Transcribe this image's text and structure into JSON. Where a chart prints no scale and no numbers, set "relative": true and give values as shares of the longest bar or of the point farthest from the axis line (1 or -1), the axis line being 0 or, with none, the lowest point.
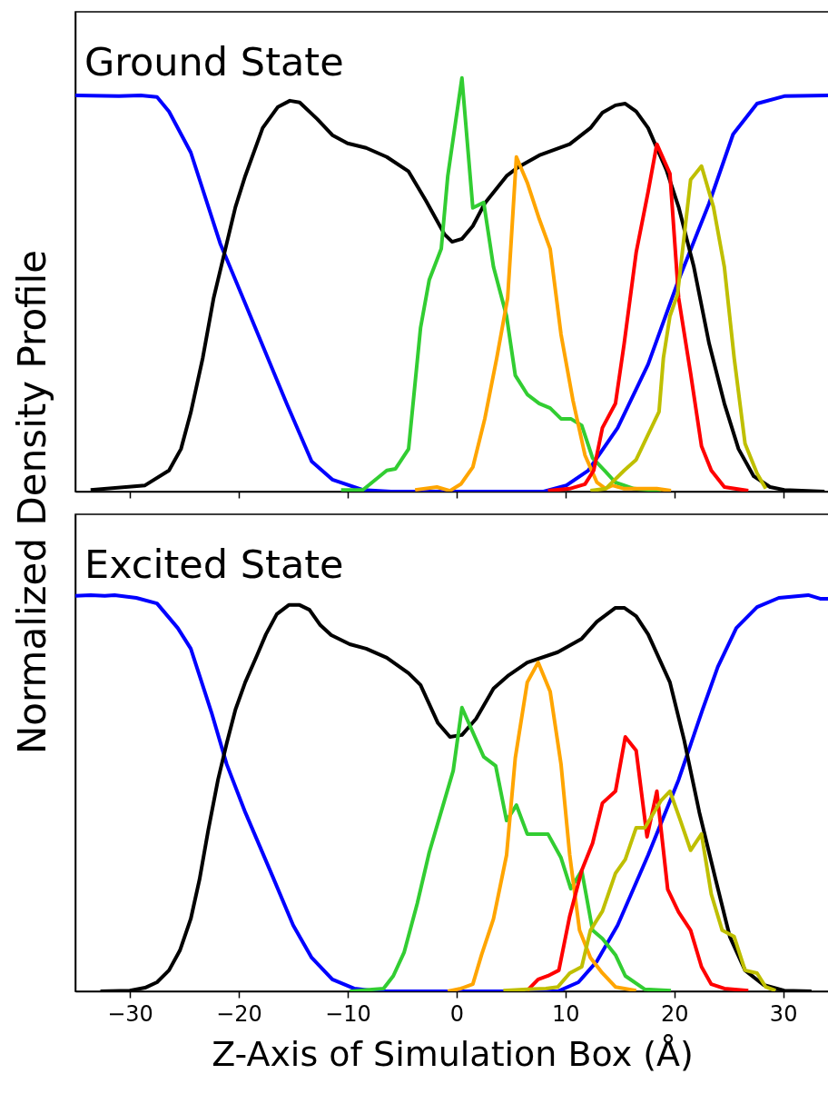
{
  "chart_data": [
    {
      "type": "line",
      "title": "Ground State",
      "relative": true,
      "tick_labels": false,
      "xlim": [
        -35,
        34.2
      ],
      "xticks": [
        -30,
        -20,
        -10,
        0,
        10,
        20,
        30
      ],
      "series": [
        {
          "color": "#0000ff",
          "x": [
            -35,
            -31,
            -29,
            -27.5,
            -26.4,
            -24.4,
            -21.7,
            -19.4,
            -15.6,
            -13.3,
            -11.4,
            -8.6,
            -6,
            8,
            10.1,
            12.1,
            14.8,
            17.6,
            20.4,
            23.2,
            25.4,
            27.6,
            30.1,
            34.2
          ],
          "values": [
            0.958,
            0.956,
            0.958,
            0.954,
            0.919,
            0.82,
            0.6,
            0.455,
            0.213,
            0.073,
            0.029,
            0.004,
            0,
            0,
            0.015,
            0.051,
            0.154,
            0.308,
            0.512,
            0.697,
            0.864,
            0.938,
            0.956,
            0.958
          ]
        },
        {
          "color": "#000000",
          "x": [
            -33.6,
            -28.6,
            -26.4,
            -25.3,
            -24.4,
            -23.3,
            -22.3,
            -21.1,
            -20.3,
            -19.4,
            -17.8,
            -16.4,
            -15.3,
            -14.4,
            -12.8,
            -11.4,
            -10,
            -8.3,
            -6.4,
            -4.4,
            -2.8,
            -1.1,
            -0.4,
            0.5,
            1.5,
            2.6,
            4.6,
            5.7,
            7.6,
            10.4,
            12.3,
            13.4,
            14.6,
            15.5,
            16.5,
            17.6,
            19.3,
            20.4,
            21.8,
            23.2,
            24.6,
            25.9,
            27.3,
            28.8,
            30.1,
            33.8
          ],
          "values": [
            0.004,
            0.015,
            0.051,
            0.103,
            0.191,
            0.323,
            0.468,
            0.6,
            0.688,
            0.763,
            0.879,
            0.93,
            0.945,
            0.941,
            0.901,
            0.862,
            0.842,
            0.831,
            0.809,
            0.774,
            0.703,
            0.622,
            0.604,
            0.611,
            0.642,
            0.697,
            0.763,
            0.785,
            0.813,
            0.84,
            0.879,
            0.916,
            0.934,
            0.938,
            0.919,
            0.879,
            0.776,
            0.688,
            0.543,
            0.358,
            0.213,
            0.103,
            0.037,
            0.011,
            0.004,
            0
          ]
        },
        {
          "color": "#32cd32",
          "x": [
            -10.6,
            -8.6,
            -6.4,
            -5.6,
            -4.4,
            -3.3,
            -2.5,
            -1.4,
            -0.8,
            0.5,
            1.5,
            2.5,
            3.4,
            4.6,
            5.4,
            6.5,
            7.6,
            8.6,
            9.6,
            10.5,
            11.5,
            12.5,
            13.6,
            14.6,
            16.3,
            18.8
          ],
          "values": [
            0.004,
            0.004,
            0.051,
            0.055,
            0.103,
            0.396,
            0.512,
            0.587,
            0.763,
            1,
            0.686,
            0.699,
            0.543,
            0.424,
            0.281,
            0.235,
            0.213,
            0.202,
            0.176,
            0.176,
            0.16,
            0.081,
            0.051,
            0.022,
            0.007,
            0.002
          ]
        },
        {
          "color": "#ffa500",
          "x": [
            -3.8,
            -1.8,
            -0.6,
            0.4,
            1.5,
            2.6,
            3.7,
            4.7,
            5.5,
            6.5,
            7.6,
            8.6,
            9.6,
            10.7,
            11.8,
            12.9,
            13.7,
            14.3,
            15.4,
            18.4,
            19.7
          ],
          "values": [
            0.004,
            0.011,
            0.002,
            0.018,
            0.059,
            0.176,
            0.323,
            0.468,
            0.809,
            0.747,
            0.659,
            0.587,
            0.38,
            0.22,
            0.088,
            0.022,
            0.007,
            0.015,
            0.007,
            0.007,
            0.002
          ]
        },
        {
          "color": "#ff0000",
          "x": [
            8.4,
            10.4,
            11.8,
            12.6,
            13.4,
            14.6,
            15.4,
            16.5,
            17.6,
            18.4,
            19.6,
            20.4,
            21.5,
            22.5,
            23.4,
            24.6,
            26.8
          ],
          "values": [
            0.002,
            0.007,
            0.018,
            0.051,
            0.154,
            0.213,
            0.358,
            0.578,
            0.725,
            0.84,
            0.769,
            0.468,
            0.286,
            0.11,
            0.051,
            0.011,
            0.002
          ]
        },
        {
          "color": "#bfbf00",
          "x": [
            12.3,
            13.7,
            15.4,
            16.5,
            17.6,
            18.6,
            19,
            19.6,
            20.3,
            21.5,
            22.5,
            23.6,
            24.6,
            25.5,
            26.5,
            27.6,
            28.4
          ],
          "values": [
            0.002,
            0.007,
            0.051,
            0.077,
            0.138,
            0.193,
            0.323,
            0.424,
            0.477,
            0.754,
            0.787,
            0.688,
            0.543,
            0.323,
            0.116,
            0.044,
            0.007
          ]
        }
      ]
    },
    {
      "type": "line",
      "title": "Excited State",
      "xlabel": "Z-Axis of Simulation Box (Å)",
      "ylabel": "Normalized Density Profile",
      "relative": true,
      "tick_labels": "x",
      "xlim": [
        -35,
        34.2
      ],
      "xticks": [
        {
          "value": -30,
          "label": "−30"
        },
        {
          "value": -20,
          "label": "−20"
        },
        {
          "value": -10,
          "label": "−10"
        },
        0,
        10,
        20,
        30
      ],
      "series": [
        {
          "color": "#0000ff",
          "x": [
            -35,
            -33.6,
            -32.3,
            -31.4,
            -29.4,
            -27.5,
            -25.6,
            -24.4,
            -22.5,
            -21.1,
            -19.4,
            -16.9,
            -15,
            -13.3,
            -11.4,
            -9.4,
            -7.2,
            9.3,
            11.2,
            12.9,
            14.8,
            17.6,
            20.4,
            22.6,
            24,
            25.7,
            27.6,
            29.6,
            32.3,
            33.4,
            34.2
          ],
          "values": [
            0.998,
            1,
            0.998,
            1,
            0.993,
            0.979,
            0.917,
            0.865,
            0.704,
            0.573,
            0.452,
            0.291,
            0.167,
            0.085,
            0.03,
            0.007,
            0,
            0,
            0.023,
            0.076,
            0.167,
            0.344,
            0.534,
            0.711,
            0.819,
            0.917,
            0.97,
            0.993,
            1,
            0.991,
            0.991
          ]
        },
        {
          "color": "#000000",
          "x": [
            -32.7,
            -30,
            -28.6,
            -27.5,
            -26.4,
            -25.4,
            -24.4,
            -23.6,
            -22.8,
            -21.9,
            -21.1,
            -20.3,
            -19.4,
            -18.3,
            -17.5,
            -16.5,
            -15.4,
            -14.4,
            -13.5,
            -12.5,
            -11.5,
            -9.8,
            -8.3,
            -6.4,
            -4.4,
            -3.3,
            -1.7,
            -0.6,
            0.5,
            1.8,
            3.4,
            4.8,
            6.5,
            9.3,
            11.5,
            12.9,
            14.6,
            15.4,
            16.5,
            17.6,
            19.6,
            20.9,
            22.3,
            23.8,
            25.1,
            26.5,
            28.2,
            30.1,
            32.6
          ],
          "values": [
            0,
            0.002,
            0.009,
            0.023,
            0.053,
            0.103,
            0.183,
            0.282,
            0.406,
            0.534,
            0.626,
            0.711,
            0.78,
            0.849,
            0.901,
            0.952,
            0.975,
            0.975,
            0.963,
            0.924,
            0.899,
            0.876,
            0.865,
            0.842,
            0.803,
            0.773,
            0.677,
            0.642,
            0.647,
            0.688,
            0.764,
            0.798,
            0.83,
            0.856,
            0.89,
            0.933,
            0.968,
            0.968,
            0.947,
            0.901,
            0.78,
            0.635,
            0.452,
            0.282,
            0.138,
            0.053,
            0.016,
            0.002,
            0
          ]
        },
        {
          "color": "#32cd32",
          "x": [
            -9.8,
            -6.7,
            -5.8,
            -4.8,
            -3.6,
            -2.5,
            -1.1,
            -0.3,
            0.5,
            2.5,
            3.6,
            4.6,
            5.5,
            6.5,
            8.4,
            9.6,
            10.5,
            11.5,
            12.5,
            13.4,
            14.6,
            15.5,
            17.3,
            19.7
          ],
          "values": [
            0,
            0.007,
            0.039,
            0.099,
            0.222,
            0.351,
            0.482,
            0.557,
            0.716,
            0.592,
            0.569,
            0.431,
            0.47,
            0.397,
            0.397,
            0.337,
            0.259,
            0.305,
            0.154,
            0.133,
            0.092,
            0.039,
            0.005,
            0.002
          ]
        },
        {
          "color": "#ffa500",
          "x": [
            -0.8,
            0.4,
            1.5,
            2.3,
            3.4,
            4.6,
            5.4,
            6.5,
            7.5,
            8.6,
            9.6,
            10.4,
            11.3,
            12.3,
            13.4,
            14.6,
            16.5
          ],
          "values": [
            0,
            0.007,
            0.018,
            0.092,
            0.183,
            0.344,
            0.589,
            0.78,
            0.83,
            0.757,
            0.573,
            0.344,
            0.154,
            0.085,
            0.046,
            0.011,
            0.002
          ]
        },
        {
          "color": "#ff0000",
          "x": [
            6.5,
            7.5,
            8.4,
            9.4,
            10.4,
            11.5,
            12.5,
            13.4,
            14.6,
            15.5,
            16.5,
            17.5,
            18.4,
            19.4,
            20.4,
            21.5,
            22.5,
            23.4,
            24.6,
            26.8
          ],
          "values": [
            0.002,
            0.03,
            0.039,
            0.053,
            0.19,
            0.305,
            0.374,
            0.475,
            0.505,
            0.642,
            0.608,
            0.39,
            0.505,
            0.257,
            0.2,
            0.154,
            0.062,
            0.018,
            0.007,
            0.002
          ]
        },
        {
          "color": "#bfbf00",
          "x": [
            4.3,
            6.5,
            8.2,
            9.3,
            10.4,
            11.5,
            12.3,
            13.4,
            14.6,
            15.5,
            16.5,
            17.3,
            18.8,
            19.6,
            20.5,
            21.5,
            22.5,
            23.4,
            24.4,
            25.5,
            26.5,
            27.6,
            28.4,
            29.3
          ],
          "values": [
            0.002,
            0.005,
            0.007,
            0.011,
            0.046,
            0.062,
            0.154,
            0.202,
            0.298,
            0.333,
            0.413,
            0.413,
            0.482,
            0.505,
            0.436,
            0.356,
            0.397,
            0.245,
            0.154,
            0.138,
            0.053,
            0.046,
            0.011,
            0.002
          ]
        }
      ]
    }
  ]
}
